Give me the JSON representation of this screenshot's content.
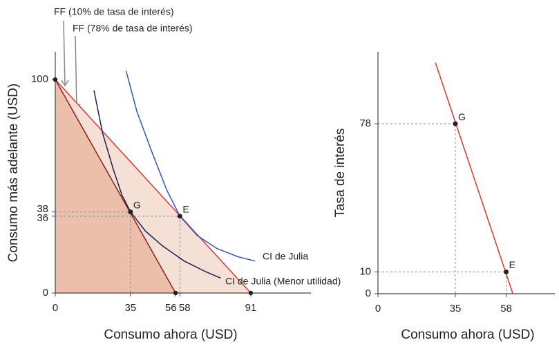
{
  "chart_data": [
    {
      "type": "line",
      "xlabel": "Consumo ahora (USD)",
      "ylabel": "Consumo más adelante (USD)",
      "xlim": [
        0,
        119
      ],
      "ylim": [
        0,
        113
      ],
      "xticks": [
        0,
        35,
        56,
        58,
        91
      ],
      "yticks": [
        0,
        36,
        38,
        100
      ],
      "series": [
        {
          "name": "FF (10% de tasa de interés)",
          "color": "#e0342b",
          "fill": "#f5e0d5",
          "end_markers": true,
          "x": [
            0,
            91
          ],
          "values": [
            100,
            0
          ]
        },
        {
          "name": "FF (78% de tasa de interés)",
          "color": "#8e1c1c",
          "fill": "#ebbfa9",
          "end_markers": true,
          "x": [
            0,
            56
          ],
          "values": [
            100,
            0
          ]
        },
        {
          "name": "CI de Julia",
          "color": "#3352c0",
          "x": [
            33,
            38,
            45,
            52,
            58,
            66,
            75,
            85,
            93
          ],
          "values": [
            104,
            85,
            66,
            48,
            36,
            27,
            21,
            17,
            15
          ]
        },
        {
          "name": "CI de Julia (Menor utilidad)",
          "color": "#1c1c52",
          "x": [
            18,
            22,
            27,
            31,
            35,
            42,
            50,
            60,
            70,
            77
          ],
          "values": [
            95,
            75,
            58,
            46,
            38,
            29,
            22,
            15,
            10,
            7
          ]
        }
      ],
      "points": [
        {
          "label": "G",
          "x": 35,
          "y": 38
        },
        {
          "label": "E",
          "x": 58,
          "y": 36
        }
      ]
    },
    {
      "type": "line",
      "xlabel": "Consumo ahora (USD)",
      "ylabel": "Tasa de interés",
      "xlim": [
        0,
        80
      ],
      "ylim": [
        0,
        111
      ],
      "xticks": [
        0,
        35,
        58
      ],
      "yticks": [
        0,
        10,
        78
      ],
      "series": [
        {
          "color": "#e0342b",
          "x": [
            26,
            61
          ],
          "values": [
            106,
            0
          ]
        }
      ],
      "points": [
        {
          "label": "G",
          "x": 35,
          "y": 78
        },
        {
          "label": "E",
          "x": 58,
          "y": 10
        }
      ]
    }
  ]
}
